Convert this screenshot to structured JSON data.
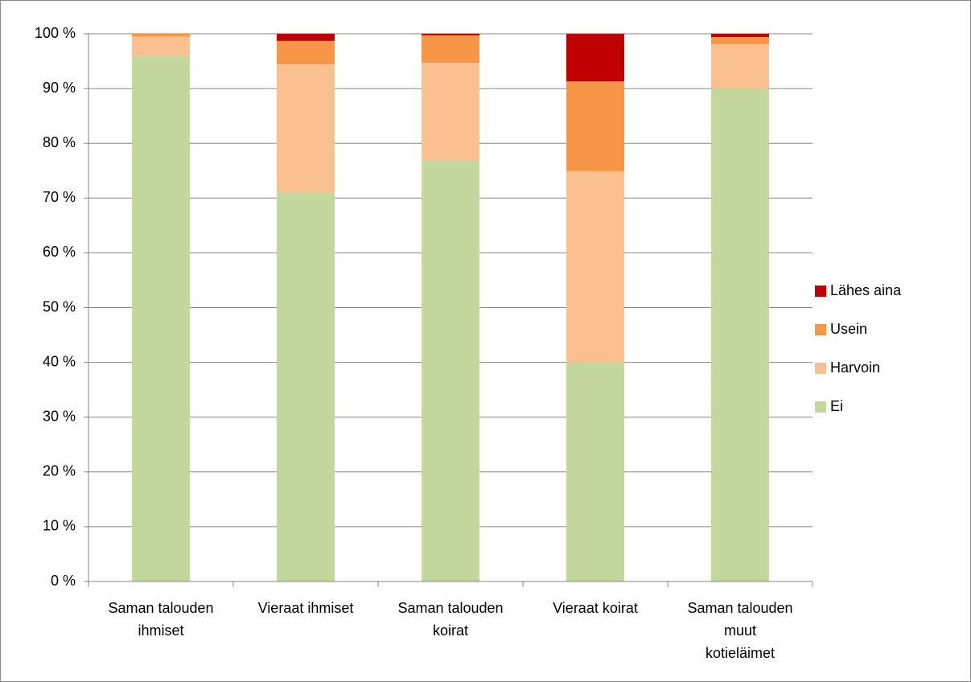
{
  "chart_data": {
    "type": "stacked_bar",
    "categories": [
      "Saman talouden\nihmiset",
      "Vieraat ihmiset",
      "Saman talouden\nkoirat",
      "Vieraat koirat",
      "Saman talouden\nmuut\nkotieläimet"
    ],
    "series": [
      {
        "name": "Ei",
        "color": "#c3d69b",
        "values": [
          96,
          71,
          76.8,
          40,
          90
        ]
      },
      {
        "name": "Harvoin",
        "color": "#fac090",
        "values": [
          3.5,
          23.4,
          17.9,
          34.9,
          8.1
        ]
      },
      {
        "name": "Usein",
        "color": "#f79646",
        "values": [
          0.5,
          4.3,
          5,
          16.4,
          1.3
        ]
      },
      {
        "name": "Lähes aina",
        "color": "#c00000",
        "values": [
          0,
          1.3,
          0.3,
          8.7,
          0.6
        ]
      }
    ],
    "ylim": [
      0,
      100
    ],
    "yticks": [
      {
        "value": 0,
        "label": "0 %"
      },
      {
        "value": 10,
        "label": "10 %"
      },
      {
        "value": 20,
        "label": "20 %"
      },
      {
        "value": 30,
        "label": "30 %"
      },
      {
        "value": 40,
        "label": "40 %"
      },
      {
        "value": 50,
        "label": "50 %"
      },
      {
        "value": 60,
        "label": "60 %"
      },
      {
        "value": 70,
        "label": "70 %"
      },
      {
        "value": 80,
        "label": "80 %"
      },
      {
        "value": 90,
        "label": "90 %"
      },
      {
        "value": 100,
        "label": "100 %"
      }
    ],
    "grid": true,
    "legend": "right"
  }
}
